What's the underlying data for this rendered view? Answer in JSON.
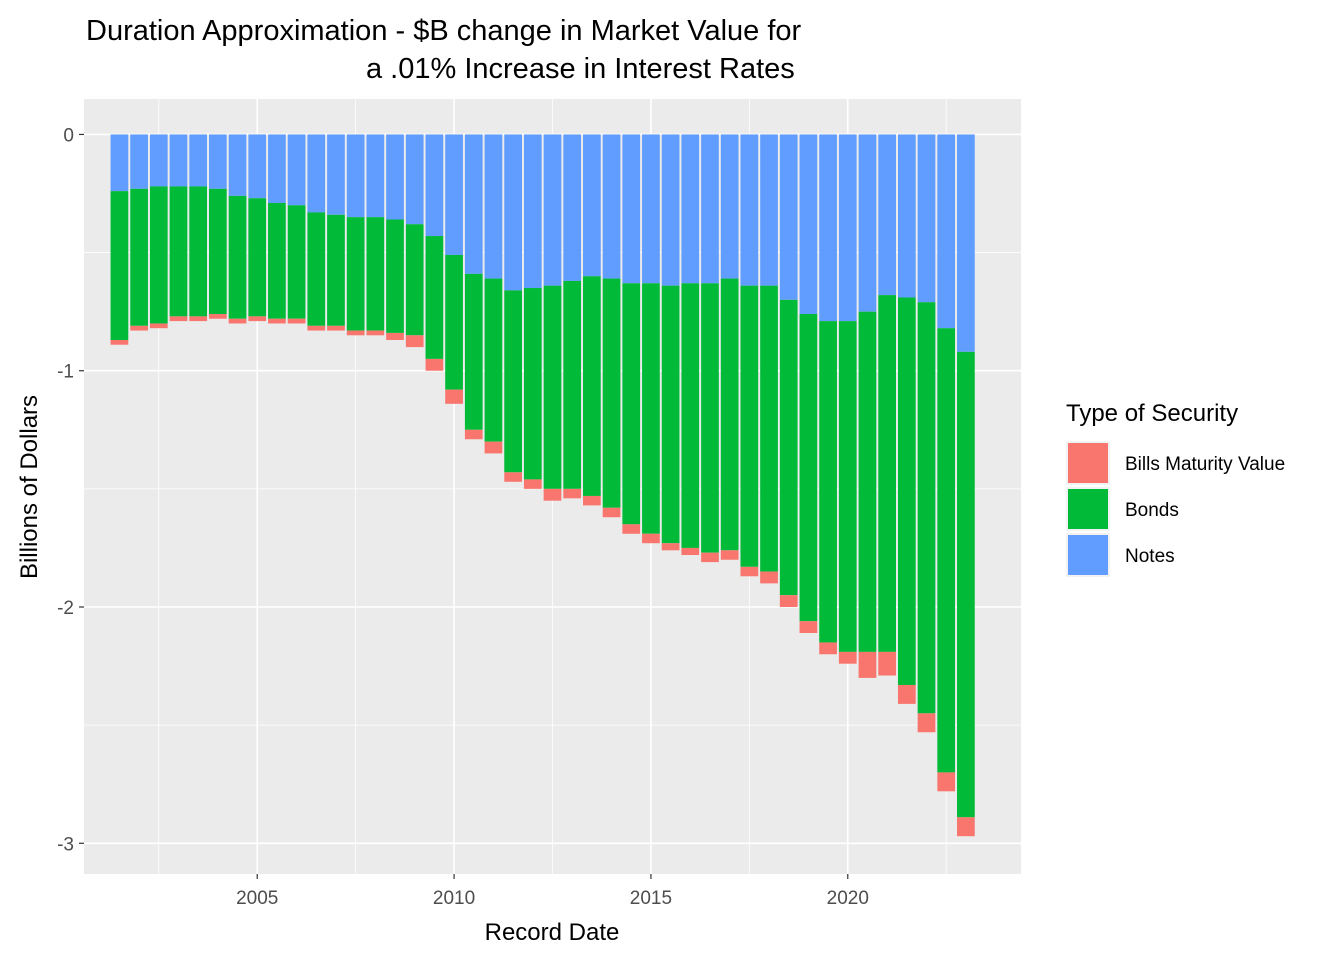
{
  "chart_data": {
    "type": "bar",
    "stacked": true,
    "title_line1": "Duration Approximation - $B change in Market Value for",
    "title_line2": "a .01% Increase in Interest Rates",
    "xlabel": "Record Date",
    "ylabel": "Billions of Dollars",
    "xlim": [
      2000.6,
      2024.4
    ],
    "ylim": [
      -3.13,
      0.15
    ],
    "x_ticks": [
      2005,
      2010,
      2015,
      2020
    ],
    "y_ticks": [
      0,
      -1,
      -2,
      -3
    ],
    "grid": true,
    "legend": {
      "title": "Type of Security",
      "placement": "right"
    },
    "x": [
      2001.5,
      2002.0,
      2002.5,
      2003.0,
      2003.5,
      2004.0,
      2004.5,
      2005.0,
      2005.5,
      2006.0,
      2006.5,
      2007.0,
      2007.5,
      2008.0,
      2008.5,
      2009.0,
      2009.5,
      2010.0,
      2010.5,
      2011.0,
      2011.5,
      2012.0,
      2012.5,
      2013.0,
      2013.5,
      2014.0,
      2014.5,
      2015.0,
      2015.5,
      2016.0,
      2016.5,
      2017.0,
      2017.5,
      2018.0,
      2018.5,
      2019.0,
      2019.5,
      2020.0,
      2020.5,
      2021.0,
      2021.5,
      2022.0,
      2022.5,
      2023.0
    ],
    "series": [
      {
        "name": "Notes",
        "color": "#619CFF",
        "values": [
          -0.24,
          -0.23,
          -0.22,
          -0.22,
          -0.22,
          -0.23,
          -0.26,
          -0.27,
          -0.29,
          -0.3,
          -0.33,
          -0.34,
          -0.35,
          -0.35,
          -0.36,
          -0.38,
          -0.43,
          -0.51,
          -0.59,
          -0.61,
          -0.66,
          -0.65,
          -0.64,
          -0.62,
          -0.6,
          -0.61,
          -0.63,
          -0.63,
          -0.64,
          -0.63,
          -0.63,
          -0.61,
          -0.64,
          -0.64,
          -0.7,
          -0.76,
          -0.79,
          -0.79,
          -0.75,
          -0.68,
          -0.69,
          -0.71,
          -0.82,
          -0.92
        ]
      },
      {
        "name": "Bonds",
        "color": "#00BA38",
        "values": [
          -0.63,
          -0.58,
          -0.58,
          -0.55,
          -0.55,
          -0.53,
          -0.52,
          -0.5,
          -0.49,
          -0.48,
          -0.48,
          -0.47,
          -0.48,
          -0.48,
          -0.48,
          -0.47,
          -0.52,
          -0.57,
          -0.66,
          -0.69,
          -0.77,
          -0.81,
          -0.86,
          -0.88,
          -0.93,
          -0.97,
          -1.02,
          -1.06,
          -1.09,
          -1.12,
          -1.14,
          -1.15,
          -1.19,
          -1.21,
          -1.25,
          -1.3,
          -1.36,
          -1.4,
          -1.44,
          -1.51,
          -1.64,
          -1.74,
          -1.88,
          -1.97
        ]
      },
      {
        "name": "Bills Maturity Value",
        "color": "#F8766D",
        "values": [
          -0.02,
          -0.02,
          -0.02,
          -0.02,
          -0.02,
          -0.02,
          -0.02,
          -0.02,
          -0.02,
          -0.02,
          -0.02,
          -0.02,
          -0.02,
          -0.02,
          -0.03,
          -0.05,
          -0.05,
          -0.06,
          -0.04,
          -0.05,
          -0.04,
          -0.04,
          -0.05,
          -0.04,
          -0.04,
          -0.04,
          -0.04,
          -0.04,
          -0.03,
          -0.03,
          -0.04,
          -0.04,
          -0.04,
          -0.05,
          -0.05,
          -0.05,
          -0.05,
          -0.05,
          -0.11,
          -0.1,
          -0.08,
          -0.08,
          -0.08,
          -0.08
        ]
      }
    ],
    "legend_order": [
      "Bills Maturity Value",
      "Bonds",
      "Notes"
    ]
  }
}
